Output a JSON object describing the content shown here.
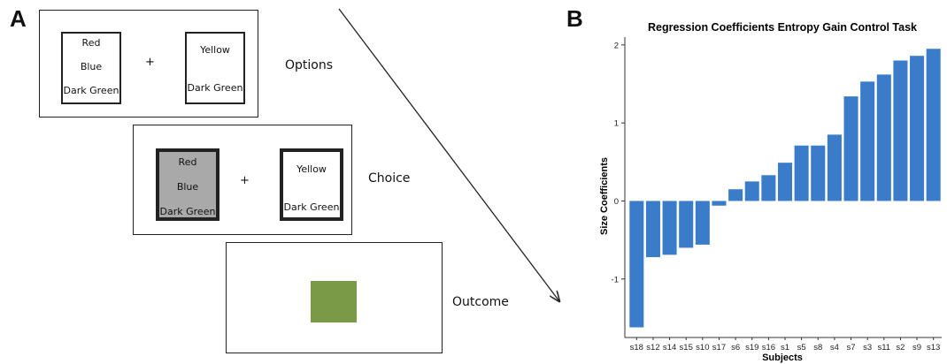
{
  "panel_a": {
    "letter": "A",
    "options": {
      "label": "Options",
      "plus": "+",
      "left_card": [
        "Red",
        "Blue",
        "Dark Green"
      ],
      "right_card": [
        "Yellow",
        "Dark Green"
      ]
    },
    "choice": {
      "label": "Choice",
      "plus": "+",
      "left_card": [
        "Red",
        "Blue",
        "Dark Green"
      ],
      "right_card": [
        "Yellow",
        "Dark Green"
      ]
    },
    "outcome": {
      "label": "Outcome",
      "swatch_color": "#7a9a47"
    }
  },
  "panel_b": {
    "letter": "B"
  },
  "chart_data": {
    "type": "bar",
    "title": "Regression Coefficients Entropy Gain Control Task",
    "xlabel": "Subjects",
    "ylabel": "Size Coefficients",
    "categories": [
      "s18",
      "s12",
      "s14",
      "s15",
      "s10",
      "s17",
      "s6",
      "s19",
      "s16",
      "s1",
      "s5",
      "s8",
      "s4",
      "s7",
      "s3",
      "s11",
      "s2",
      "s9",
      "s13"
    ],
    "values": [
      -1.62,
      -0.72,
      -0.69,
      -0.6,
      -0.56,
      -0.06,
      0.15,
      0.25,
      0.33,
      0.49,
      0.71,
      0.71,
      0.85,
      1.34,
      1.53,
      1.62,
      1.8,
      1.86,
      1.95
    ],
    "ylim": [
      -1.75,
      2.1
    ],
    "yticks": [
      -1,
      0,
      1,
      2
    ],
    "bar_color": "#3a7cc9",
    "grid": false
  }
}
